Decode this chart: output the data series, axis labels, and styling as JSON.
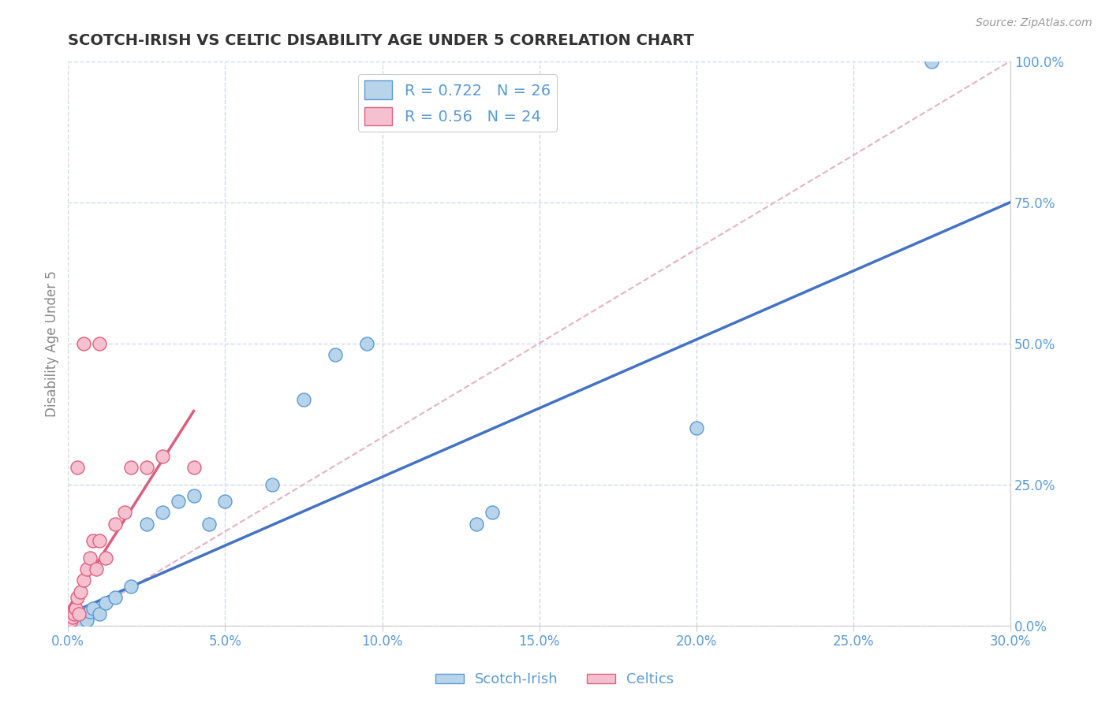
{
  "title": "SCOTCH-IRISH VS CELTIC DISABILITY AGE UNDER 5 CORRELATION CHART",
  "source": "Source: ZipAtlas.com",
  "xlabel_vals": [
    0.0,
    5.0,
    10.0,
    15.0,
    20.0,
    25.0,
    30.0
  ],
  "ylabel": "Disability Age Under 5",
  "ylabel_vals": [
    0.0,
    25.0,
    50.0,
    75.0,
    100.0
  ],
  "xlim": [
    0.0,
    30.0
  ],
  "ylim": [
    0.0,
    100.0
  ],
  "scotch_irish_R": 0.722,
  "scotch_irish_N": 26,
  "celtics_R": 0.56,
  "celtics_N": 24,
  "scotch_irish_color": "#b8d4ea",
  "celtics_color": "#f5c0cf",
  "scotch_irish_edge_color": "#5b9bd5",
  "celtics_edge_color": "#e06080",
  "scotch_irish_line_color": "#4472c4",
  "celtics_line_color": "#d95f7f",
  "ref_line_color": "#e0a0b0",
  "scotch_irish_x": [
    0.1,
    0.2,
    0.3,
    0.4,
    0.5,
    0.6,
    0.7,
    0.8,
    1.0,
    1.2,
    1.5,
    2.0,
    2.5,
    3.0,
    3.5,
    4.0,
    4.5,
    5.0,
    6.5,
    7.5,
    8.5,
    9.5,
    13.0,
    13.5,
    20.0,
    27.5
  ],
  "scotch_irish_y": [
    1.0,
    0.5,
    1.5,
    0.5,
    2.0,
    1.0,
    2.5,
    3.0,
    2.0,
    4.0,
    5.0,
    7.0,
    18.0,
    20.0,
    22.0,
    23.0,
    18.0,
    22.0,
    25.0,
    40.0,
    48.0,
    50.0,
    18.0,
    20.0,
    35.0,
    100.0
  ],
  "celtics_x": [
    0.05,
    0.1,
    0.15,
    0.2,
    0.25,
    0.3,
    0.35,
    0.4,
    0.5,
    0.6,
    0.7,
    0.8,
    0.9,
    1.0,
    1.2,
    1.5,
    1.8,
    2.0,
    2.5,
    3.0,
    4.0,
    1.0,
    0.5,
    0.3
  ],
  "celtics_y": [
    0.5,
    1.0,
    1.5,
    2.0,
    3.0,
    5.0,
    2.0,
    6.0,
    8.0,
    10.0,
    12.0,
    15.0,
    10.0,
    15.0,
    12.0,
    18.0,
    20.0,
    28.0,
    28.0,
    30.0,
    28.0,
    50.0,
    50.0,
    28.0
  ],
  "scotch_irish_line_x": [
    0.0,
    30.0
  ],
  "scotch_irish_line_y": [
    2.0,
    75.0
  ],
  "celtics_line_x": [
    0.0,
    4.0
  ],
  "celtics_line_y": [
    3.0,
    38.0
  ],
  "ref_line_x": [
    0.0,
    30.0
  ],
  "ref_line_y": [
    0.0,
    100.0
  ],
  "background_color": "#ffffff",
  "grid_color": "#d0d8e8",
  "title_color": "#333333",
  "axis_label_color": "#5b9bd5",
  "ylabel_color": "#888888",
  "title_fontsize": 14,
  "tick_fontsize": 12,
  "legend_fontsize": 14
}
